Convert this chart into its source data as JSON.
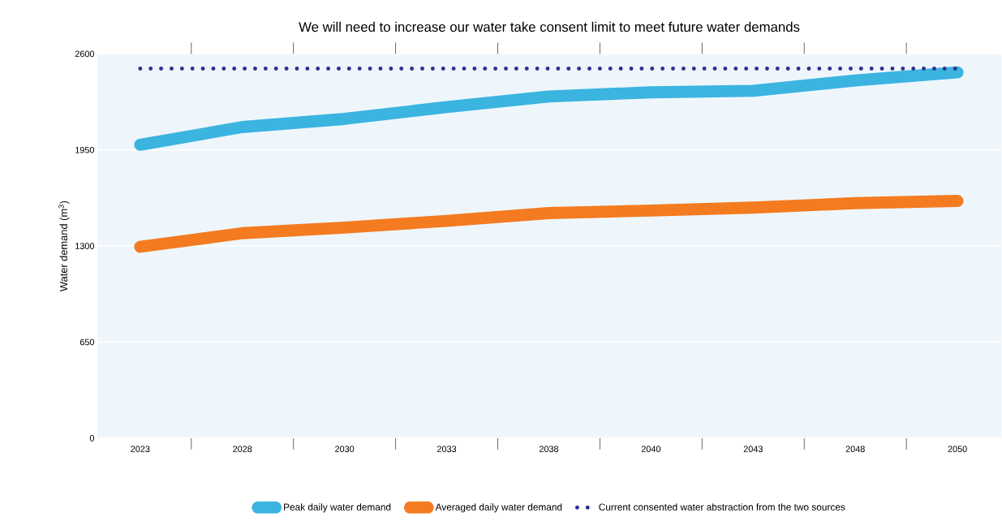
{
  "chart_data": {
    "type": "line",
    "title": "We will need to increase our water take consent limit to meet future water demands",
    "ylabel": "Water demand (m$^{3}$)",
    "categories": [
      "2023",
      "2028",
      "2030",
      "2033",
      "2038",
      "2040",
      "2043",
      "2048",
      "2050"
    ],
    "series": [
      {
        "name": "Peak daily water demand",
        "color": "#3bb4e0",
        "line_style": "solid",
        "values": [
          1985,
          2105,
          2160,
          2240,
          2312,
          2340,
          2350,
          2420,
          2475
        ]
      },
      {
        "name": "Averaged daily water demand",
        "color": "#f47b20",
        "line_style": "solid",
        "values": [
          1295,
          1387,
          1425,
          1470,
          1523,
          1540,
          1560,
          1590,
          1605
        ]
      },
      {
        "name": "Current consented water abstraction from the two sources",
        "color": "#2e3192",
        "line_style": "dotted",
        "values": [
          2500,
          2500,
          2500,
          2500,
          2500,
          2500,
          2500,
          2500,
          2500
        ]
      }
    ],
    "ylim": [
      0,
      2600
    ],
    "yticks": [
      0,
      650,
      1300,
      1950,
      2600
    ],
    "grid": "y",
    "legend": "bottom",
    "marker": "none"
  }
}
